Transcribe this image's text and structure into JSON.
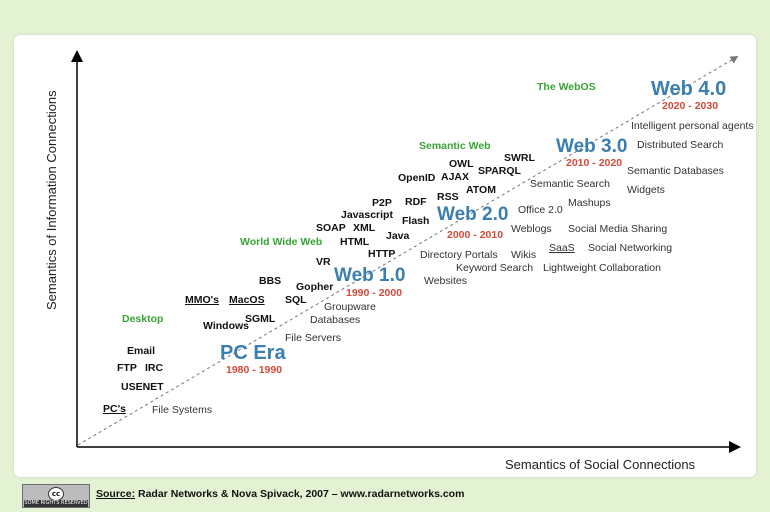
{
  "axes": {
    "y_label": "Semantics of Information Connections",
    "x_label": "Semantics of Social Connections"
  },
  "eras": [
    {
      "name": "PC Era",
      "years": "1980 - 1990"
    },
    {
      "name": "Web 1.0",
      "years": "1990 - 2000"
    },
    {
      "name": "Web 2.0",
      "years": "2000 - 2010"
    },
    {
      "name": "Web 3.0",
      "years": "2010 - 2020"
    },
    {
      "name": "Web 4.0",
      "years": "2020 - 2030"
    }
  ],
  "phases": [
    "Desktop",
    "World Wide Web",
    "Semantic Web",
    "The WebOS"
  ],
  "technologies": [
    "PC's",
    "USENET",
    "FTP",
    "IRC",
    "Email",
    "Windows",
    "MMO's",
    "MacOS",
    "SGML",
    "SQL",
    "BBS",
    "Gopher",
    "VR",
    "HTTP",
    "HTML",
    "SOAP",
    "XML",
    "Javascript",
    "Java",
    "P2P",
    "RDF",
    "Flash",
    "RSS",
    "OpenID",
    "AJAX",
    "ATOM",
    "OWL",
    "SPARQL",
    "SWRL",
    "SaaS"
  ],
  "applications": [
    "File Systems",
    "File Servers",
    "Databases",
    "Groupware",
    "Websites",
    "Directory Portals",
    "Keyword Search",
    "Wikis",
    "Weblogs",
    "Lightweight Collaboration",
    "Social Networking",
    "Social Media Sharing",
    "Mashups",
    "Office 2.0",
    "Semantic Search",
    "Widgets",
    "Semantic Databases",
    "Distributed Search",
    "Intelligent personal agents"
  ],
  "footer": {
    "source_label": "Source:",
    "source_text": " Radar Networks & Nova Spivack, 2007 – www.radarnetworks.com",
    "cc_symbol": "cc",
    "cc_text": "SOME RIGHTS RESERVED"
  }
}
